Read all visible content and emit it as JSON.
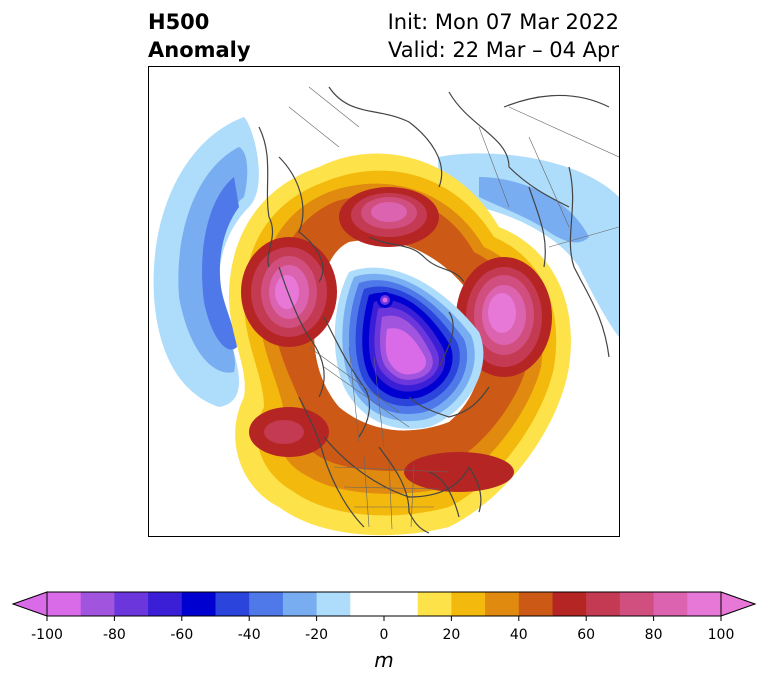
{
  "title": {
    "left_line1": "H500",
    "left_line2": "Anomaly",
    "right_line1": "Init: Mon 07 Mar 2022",
    "right_line2": "Valid: 22 Mar – 04 Apr"
  },
  "colorbar": {
    "unit": "m",
    "ticks": [
      "-100",
      "-80",
      "-60",
      "-40",
      "-20",
      "0",
      "20",
      "40",
      "60",
      "80",
      "100"
    ],
    "extend": "both",
    "bins": [
      {
        "from": -100,
        "to": -90,
        "color": "#d96be8"
      },
      {
        "from": -90,
        "to": -80,
        "color": "#a155de"
      },
      {
        "from": -80,
        "to": -70,
        "color": "#6b37dc"
      },
      {
        "from": -70,
        "to": -60,
        "color": "#3a1fd6"
      },
      {
        "from": -60,
        "to": -50,
        "color": "#0000d0"
      },
      {
        "from": -50,
        "to": -40,
        "color": "#2a44dc"
      },
      {
        "from": -40,
        "to": -30,
        "color": "#4f79e8"
      },
      {
        "from": -30,
        "to": -20,
        "color": "#79adf2"
      },
      {
        "from": -20,
        "to": -10,
        "color": "#aedcfb"
      },
      {
        "from": -10,
        "to": 0,
        "color": "#ffffff"
      },
      {
        "from": 0,
        "to": 10,
        "color": "#ffffff"
      },
      {
        "from": 10,
        "to": 20,
        "color": "#fde24a"
      },
      {
        "from": 20,
        "to": 30,
        "color": "#f3b90c"
      },
      {
        "from": 30,
        "to": 40,
        "color": "#e18a10"
      },
      {
        "from": 40,
        "to": 50,
        "color": "#cc5a16"
      },
      {
        "from": 50,
        "to": 60,
        "color": "#b52524"
      },
      {
        "from": 60,
        "to": 70,
        "color": "#c43a52"
      },
      {
        "from": 70,
        "to": 80,
        "color": "#d04f7e"
      },
      {
        "from": 80,
        "to": 90,
        "color": "#db63b0"
      },
      {
        "from": 90,
        "to": 100,
        "color": "#e878d8"
      }
    ],
    "under_color": "#d96be8",
    "over_color": "#e878d8"
  },
  "map_features": [
    {
      "name": "negative-anomaly-center-arctic",
      "sign": "negative",
      "peak_class": "-100"
    },
    {
      "name": "positive-anomaly-greenland",
      "sign": "positive",
      "peak_class": "100"
    },
    {
      "name": "positive-anomaly-alaska",
      "sign": "positive",
      "peak_class": "100"
    },
    {
      "name": "positive-anomaly-scandinavia",
      "sign": "positive",
      "peak_class": "100"
    },
    {
      "name": "positive-anomaly-northeast-pacific",
      "sign": "positive",
      "peak_class": "70"
    },
    {
      "name": "positive-anomaly-eastern-us",
      "sign": "positive",
      "peak_class": "60"
    },
    {
      "name": "negative-anomaly-north-atlantic",
      "sign": "negative",
      "peak_class": "-50"
    },
    {
      "name": "negative-anomaly-eastern-asia",
      "sign": "negative",
      "peak_class": "-30"
    }
  ]
}
